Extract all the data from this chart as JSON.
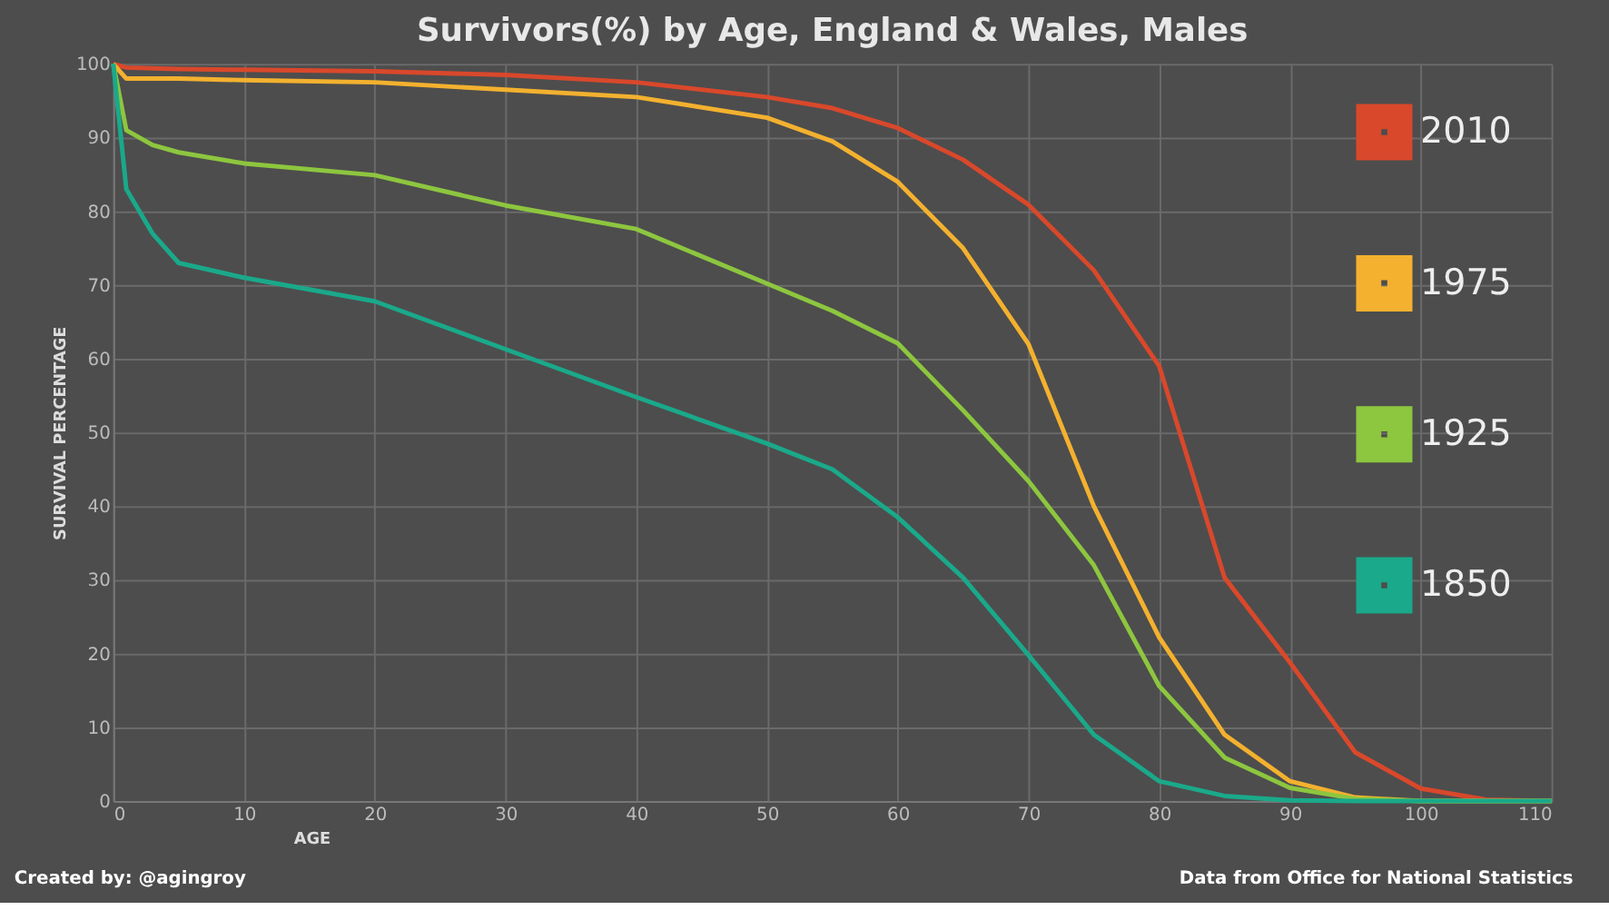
{
  "chart_data": {
    "type": "line",
    "title": "Survivors(%) by Age, England & Wales, Males",
    "xlabel": "AGE",
    "ylabel": "SURVIVAL PERCENTAGE",
    "xlim": [
      0,
      110
    ],
    "xticks": [
      0,
      10,
      20,
      30,
      40,
      50,
      60,
      70,
      80,
      90,
      100,
      110
    ],
    "ylim": [
      0,
      100
    ],
    "yticks": [
      0,
      10,
      20,
      30,
      40,
      50,
      60,
      70,
      80,
      90,
      100
    ],
    "grid": true,
    "legend": "top right",
    "marker": "none",
    "line_style": "solid",
    "x": [
      0,
      1,
      3,
      5,
      10,
      20,
      30,
      40,
      50,
      55,
      60,
      65,
      70,
      75,
      80,
      85,
      90,
      95,
      100,
      105,
      110
    ],
    "series": [
      {
        "name": "2010",
        "color": "#d9482b",
        "values": [
          100,
          99.5,
          99.4,
          99.3,
          99.2,
          99,
          98.5,
          97.5,
          95.5,
          94,
          91.3,
          87,
          80.9,
          72,
          59,
          30.3,
          18.8,
          6.6,
          1.7,
          0.2,
          0
        ]
      },
      {
        "name": "1975",
        "color": "#f3b12f",
        "values": [
          100,
          98,
          98,
          98,
          97.8,
          97.5,
          96.5,
          95.5,
          92.7,
          89.5,
          84,
          75,
          62,
          40,
          22.2,
          9,
          2.7,
          0.5,
          0,
          0,
          0
        ]
      },
      {
        "name": "1925",
        "color": "#8dc63f",
        "values": [
          100,
          91,
          89,
          88,
          86.5,
          84.9,
          80.8,
          77.6,
          70.2,
          66.5,
          62.1,
          53,
          43.4,
          32,
          15.6,
          5.9,
          1.8,
          0.3,
          0,
          0,
          0
        ]
      },
      {
        "name": "1850",
        "color": "#1aa98a",
        "values": [
          100,
          83,
          77,
          73,
          71,
          67.8,
          61.3,
          54.8,
          48.5,
          45,
          38.5,
          30.3,
          19.8,
          9,
          2.7,
          0.7,
          0.1,
          0,
          0,
          0,
          0
        ]
      }
    ],
    "annotations": [
      "Created by: @agingroy",
      "Data from Office for National Statistics"
    ]
  }
}
